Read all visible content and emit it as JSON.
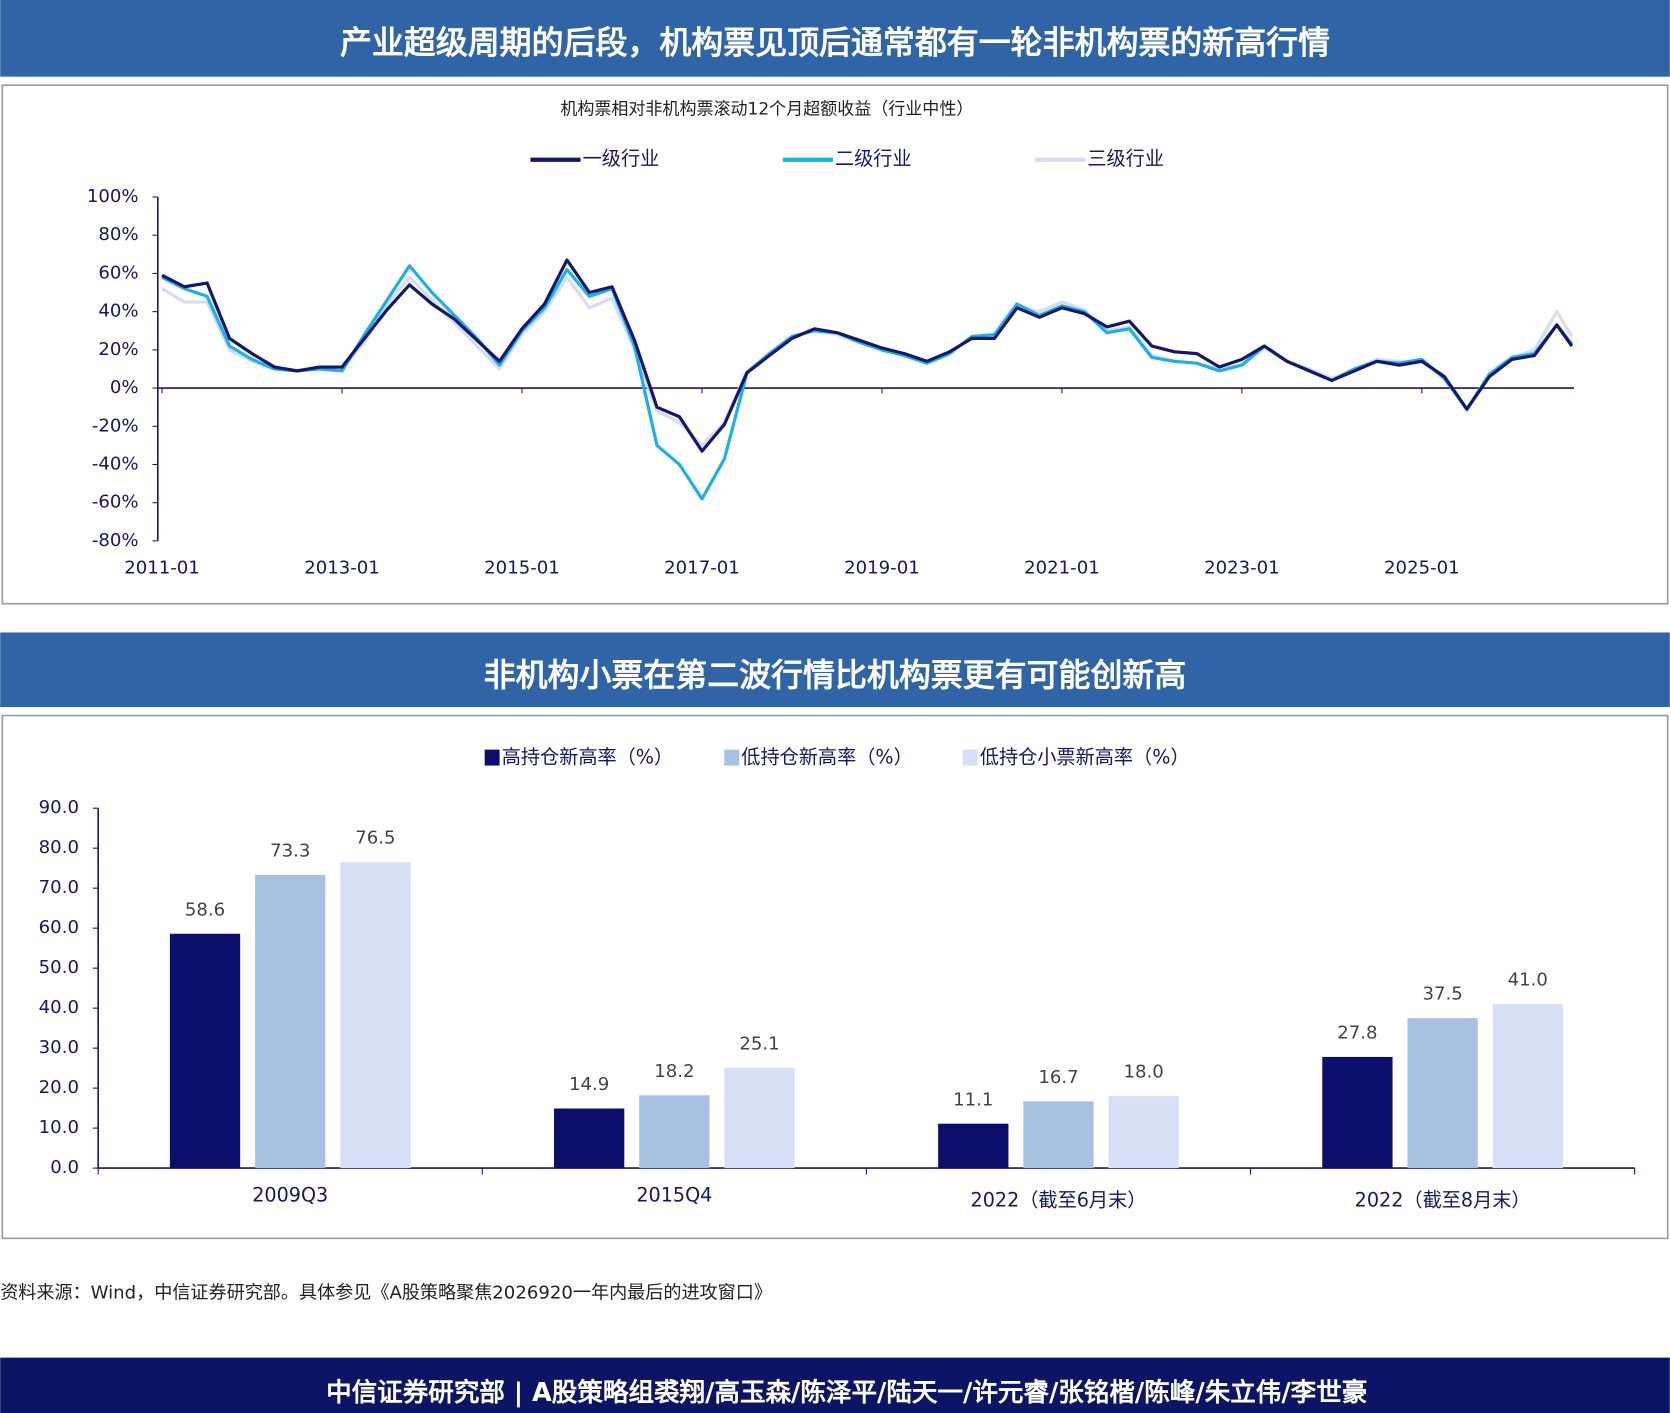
{
  "banners": [
    "产业超级周期的后段，机构票见顶后通常都有一轮非机构票的新高行情",
    "非机构小票在第二波行情比机构票更有可能创新高"
  ],
  "source": "资料来源：Wind，中信证券研究部。具体参见《A股策略聚焦2026920一年内最后的进攻窗口》",
  "footer": "中信证券研究部 | A股策略组裘翔/高玉森/陈泽平/陆天一/许元睿/张铭楷/陈峰/朱立伟/李世豪",
  "chart_data": [
    {
      "type": "line",
      "title": "机构票相对非机构票滚动12个月超额收益（行业中性）",
      "x": [
        "2011-01",
        "2011-04",
        "2011-07",
        "2011-10",
        "2012-01",
        "2012-04",
        "2012-07",
        "2012-10",
        "2013-01",
        "2013-04",
        "2013-07",
        "2013-10",
        "2014-01",
        "2014-04",
        "2014-07",
        "2014-10",
        "2015-01",
        "2015-04",
        "2015-07",
        "2015-10",
        "2016-01",
        "2016-04",
        "2016-07",
        "2016-10",
        "2017-01",
        "2017-04",
        "2017-07",
        "2017-10",
        "2018-01",
        "2018-04",
        "2018-07",
        "2018-10",
        "2019-01",
        "2019-04",
        "2019-07",
        "2019-10",
        "2020-01",
        "2020-04",
        "2020-07",
        "2020-10",
        "2021-01",
        "2021-04",
        "2021-07",
        "2021-10",
        "2022-01",
        "2022-04",
        "2022-07",
        "2022-10",
        "2023-01",
        "2023-04",
        "2023-07",
        "2023-10",
        "2024-01",
        "2024-04",
        "2024-07",
        "2024-10",
        "2025-01",
        "2025-04",
        "2025-07",
        "2025-10",
        "2026-01",
        "2026-04",
        "2026-07",
        "2026-09"
      ],
      "xlim": [
        "2011-01",
        "2026-09"
      ],
      "xticks": [
        "2011-01",
        "2013-01",
        "2015-01",
        "2017-01",
        "2019-01",
        "2021-01",
        "2023-01",
        "2025-01"
      ],
      "ylim": [
        -80,
        100
      ],
      "yticks": [
        {
          "value": -80,
          "label": "-80%"
        },
        {
          "value": -60,
          "label": "-60%"
        },
        {
          "value": -40,
          "label": "-40%"
        },
        {
          "value": -20,
          "label": "-20%"
        },
        {
          "value": 0,
          "label": "0%"
        },
        {
          "value": 20,
          "label": "20%"
        },
        {
          "value": 40,
          "label": "40%"
        },
        {
          "value": 60,
          "label": "60%"
        },
        {
          "value": 80,
          "label": "80%"
        },
        {
          "value": 100,
          "label": "100%"
        }
      ],
      "series": [
        {
          "name": "一级行业",
          "color": "#14176b",
          "values": [
            59,
            53,
            55,
            26,
            18,
            11,
            9,
            11,
            11,
            26,
            41,
            54,
            44,
            36,
            25,
            14,
            31,
            44,
            67,
            50,
            53,
            25,
            -10,
            -15,
            -33,
            -19,
            8,
            17,
            26,
            31,
            29,
            25,
            21,
            18,
            14,
            19,
            26,
            26,
            42,
            37,
            42,
            39,
            32,
            35,
            22,
            19,
            18,
            11,
            15,
            22,
            14,
            9,
            4,
            9,
            14,
            12,
            14,
            6,
            -11,
            6,
            15,
            17,
            33,
            22
          ]
        },
        {
          "name": "二级行业",
          "color": "#1ab0e8",
          "values": [
            58,
            52,
            48,
            22,
            15,
            10,
            9,
            10,
            9,
            28,
            46,
            64,
            50,
            38,
            26,
            12,
            30,
            42,
            62,
            48,
            52,
            22,
            -30,
            -40,
            -58,
            -37,
            8,
            18,
            27,
            30,
            29,
            24,
            20,
            17,
            13,
            18,
            27,
            28,
            44,
            38,
            43,
            40,
            29,
            31,
            16,
            14,
            13,
            9,
            12,
            22,
            14,
            9,
            4,
            10,
            14,
            13,
            15,
            5,
            -11,
            7,
            16,
            18,
            33,
            23
          ]
        },
        {
          "name": "三级行业",
          "color": "#d6dcf3",
          "values": [
            52,
            45,
            45,
            20,
            14,
            10,
            9,
            10,
            10,
            24,
            44,
            58,
            46,
            34,
            22,
            10,
            28,
            40,
            58,
            42,
            47,
            20,
            -12,
            -18,
            -30,
            -18,
            9,
            18,
            27,
            30,
            28,
            24,
            20,
            17,
            13,
            18,
            27,
            27,
            43,
            40,
            45,
            41,
            30,
            32,
            17,
            14,
            13,
            10,
            12,
            21,
            14,
            10,
            5,
            10,
            15,
            14,
            14,
            6,
            -12,
            8,
            16,
            20,
            40,
            27
          ]
        }
      ]
    },
    {
      "type": "bar",
      "categories": [
        "2009Q3",
        "2015Q4",
        "2022（截至6月末）",
        "2022（截至8月末）"
      ],
      "ylim": [
        0,
        90
      ],
      "yticks": [
        {
          "value": 0,
          "label": "0.0"
        },
        {
          "value": 10,
          "label": "10.0"
        },
        {
          "value": 20,
          "label": "20.0"
        },
        {
          "value": 30,
          "label": "30.0"
        },
        {
          "value": 40,
          "label": "40.0"
        },
        {
          "value": 50,
          "label": "50.0"
        },
        {
          "value": 60,
          "label": "60.0"
        },
        {
          "value": 70,
          "label": "70.0"
        },
        {
          "value": 80,
          "label": "80.0"
        },
        {
          "value": 90,
          "label": "90.0"
        }
      ],
      "series": [
        {
          "name": "高持仓新高率（%）",
          "color": "#0b0f6b",
          "values": [
            58.6,
            14.9,
            11.1,
            27.8
          ],
          "value_labels": [
            "58.6",
            "14.9",
            "11.1",
            "27.8"
          ]
        },
        {
          "name": "低持仓新高率（%）",
          "color": "#a8c1e3",
          "values": [
            73.3,
            18.2,
            16.7,
            37.5
          ],
          "value_labels": [
            "73.3",
            "18.2",
            "16.7",
            "37.5"
          ]
        },
        {
          "name": "低持仓小票新高率（%）",
          "color": "#d8e0f5",
          "values": [
            76.5,
            25.1,
            18,
            41
          ],
          "value_labels": [
            "76.5",
            "25.1",
            "18.0",
            "41.0"
          ]
        }
      ]
    }
  ]
}
